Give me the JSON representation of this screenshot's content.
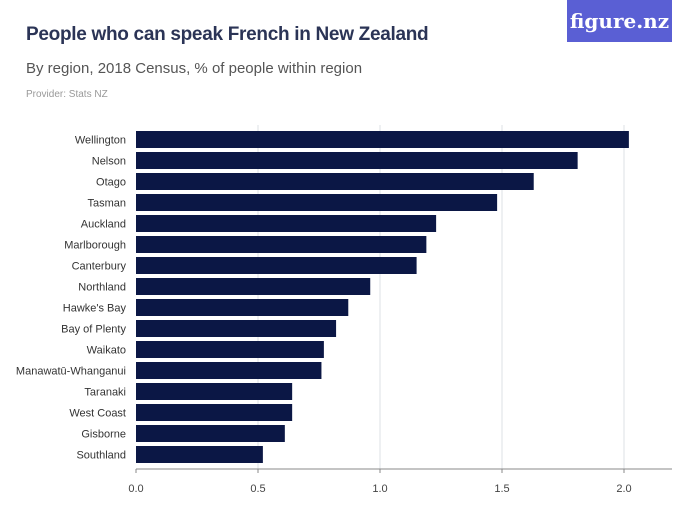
{
  "logo": "figure.nz",
  "chart_data": {
    "type": "bar",
    "orientation": "horizontal",
    "title": "People who can speak French in New Zealand",
    "subtitle": "By region, 2018 Census, % of people within region",
    "provider": "Provider: Stats NZ",
    "categories": [
      "Wellington",
      "Nelson",
      "Otago",
      "Tasman",
      "Auckland",
      "Marlborough",
      "Canterbury",
      "Northland",
      "Hawke's Bay",
      "Bay of Plenty",
      "Waikato",
      "Manawatū-Whanganui",
      "Taranaki",
      "West Coast",
      "Gisborne",
      "Southland"
    ],
    "values": [
      2.02,
      1.81,
      1.63,
      1.48,
      1.23,
      1.19,
      1.15,
      0.96,
      0.87,
      0.82,
      0.77,
      0.76,
      0.64,
      0.64,
      0.61,
      0.52
    ],
    "xlim": [
      0,
      2.2
    ],
    "xticks": [
      "0.0",
      "0.5",
      "1.0",
      "1.5",
      "2.0"
    ],
    "grid": true,
    "bar_color": "#0b1745"
  }
}
